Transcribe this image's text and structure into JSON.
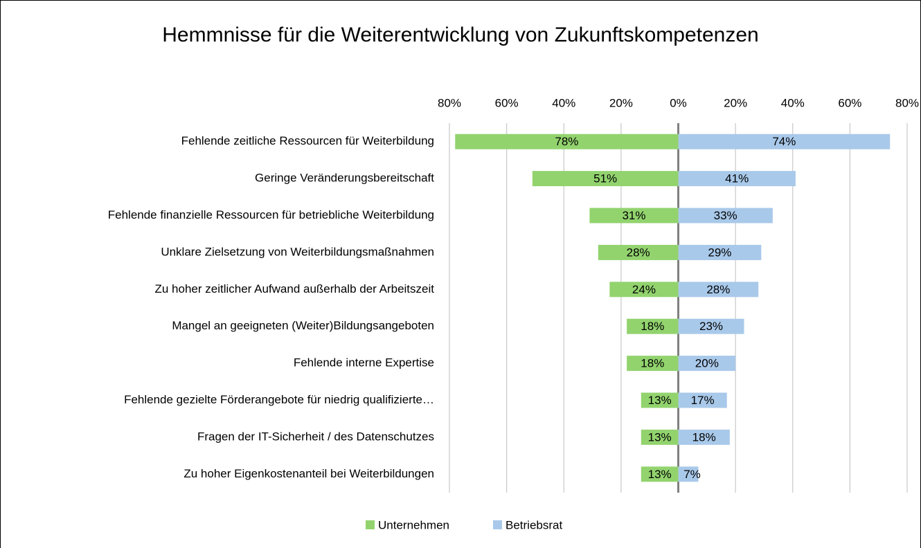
{
  "chart_data": {
    "type": "butterfly-bar",
    "title": "Hemmnisse für die Weiterentwicklung von Zukunftskompetenzen",
    "categories": [
      "Fehlende zeitliche Ressourcen für Weiterbildung",
      "Geringe Veränderungsbereitschaft",
      "Fehlende finanzielle Ressourcen für betriebliche Weiterbildung",
      "Unklare Zielsetzung von Weiterbildungsmaßnahmen",
      "Zu hoher zeitlicher Aufwand außerhalb der Arbeitszeit",
      "Mangel an geeigneten (Weiter)Bildungsangeboten",
      "Fehlende interne Expertise",
      "Fehlende gezielte Förderangebote für niedrig qualifizierte…",
      "Fragen der IT-Sicherheit / des Datenschutzes",
      "Zu hoher Eigenkostenanteil bei Weiterbildungen"
    ],
    "series": [
      {
        "name": "Unternehmen",
        "color": "#92d36e",
        "side": "left",
        "values": [
          78,
          51,
          31,
          28,
          24,
          18,
          18,
          13,
          13,
          13
        ],
        "value_labels": [
          "78%",
          "51%",
          "31%",
          "28%",
          "24%",
          "18%",
          "18%",
          "13%",
          "13%",
          "13%"
        ]
      },
      {
        "name": "Betriebsrat",
        "color": "#a9c9ea",
        "side": "right",
        "values": [
          74,
          41,
          33,
          29,
          28,
          23,
          20,
          17,
          18,
          7
        ],
        "value_labels": [
          "74%",
          "41%",
          "33%",
          "29%",
          "28%",
          "23%",
          "20%",
          "17%",
          "18%",
          "7%"
        ]
      }
    ],
    "xlim": [
      -80,
      80
    ],
    "xticks": [
      {
        "value": -80,
        "label": "80%"
      },
      {
        "value": -60,
        "label": "60%"
      },
      {
        "value": -40,
        "label": "40%"
      },
      {
        "value": -20,
        "label": "20%"
      },
      {
        "value": 0,
        "label": "0%"
      },
      {
        "value": 20,
        "label": "20%"
      },
      {
        "value": 40,
        "label": "40%"
      },
      {
        "value": 60,
        "label": "60%"
      },
      {
        "value": 80,
        "label": "80%"
      }
    ],
    "grid": true,
    "legend": "bottom"
  }
}
